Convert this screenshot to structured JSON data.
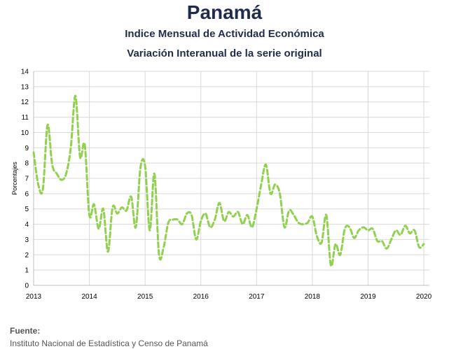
{
  "header": {
    "title": "Panamá",
    "subtitle1": "Indice Mensual de  Actividad Económica",
    "subtitle2": "Variación Interanual de la serie original"
  },
  "source": {
    "label": "Fuente:",
    "text": "Instituto Nacional de Estadística y Censo de Panamá"
  },
  "chart_data": {
    "type": "line",
    "ylabel": "Porcentajes",
    "xlabel": "",
    "ylim": [
      0,
      14
    ],
    "yticks": [
      0,
      1,
      2,
      3,
      4,
      5,
      6,
      7,
      8,
      9,
      10,
      11,
      12,
      13,
      14
    ],
    "xlim": [
      2013,
      2020.1
    ],
    "xticks": [
      "2013",
      "2014",
      "2015",
      "2016",
      "2017",
      "2018",
      "2019",
      "2020"
    ],
    "grid": true,
    "legend": "none",
    "series_color": "#92d050",
    "line_style": "dashed",
    "x": [
      "2013-01",
      "2013-02",
      "2013-03",
      "2013-04",
      "2013-05",
      "2013-06",
      "2013-07",
      "2013-08",
      "2013-09",
      "2013-10",
      "2013-11",
      "2013-12",
      "2014-01",
      "2014-02",
      "2014-03",
      "2014-04",
      "2014-05",
      "2014-06",
      "2014-07",
      "2014-08",
      "2014-09",
      "2014-10",
      "2014-11",
      "2014-12",
      "2015-01",
      "2015-02",
      "2015-03",
      "2015-04",
      "2015-05",
      "2015-06",
      "2015-07",
      "2015-08",
      "2015-09",
      "2015-10",
      "2015-11",
      "2015-12",
      "2016-01",
      "2016-02",
      "2016-03",
      "2016-04",
      "2016-05",
      "2016-06",
      "2016-07",
      "2016-08",
      "2016-09",
      "2016-10",
      "2016-11",
      "2016-12",
      "2017-01",
      "2017-02",
      "2017-03",
      "2017-04",
      "2017-05",
      "2017-06",
      "2017-07",
      "2017-08",
      "2017-09",
      "2017-10",
      "2017-11",
      "2017-12",
      "2018-01",
      "2018-02",
      "2018-03",
      "2018-04",
      "2018-05",
      "2018-06",
      "2018-07",
      "2018-08",
      "2018-09",
      "2018-10",
      "2018-11",
      "2018-12",
      "2019-01",
      "2019-02",
      "2019-03",
      "2019-04",
      "2019-05",
      "2019-06",
      "2019-07",
      "2019-08",
      "2019-09",
      "2019-10",
      "2019-11",
      "2019-12",
      "2020-01"
    ],
    "values": [
      8.7,
      6.6,
      6.3,
      10.5,
      7.9,
      7.3,
      6.9,
      7.3,
      9.0,
      12.4,
      8.4,
      9.2,
      4.6,
      5.3,
      3.7,
      5.0,
      2.2,
      5.1,
      4.7,
      5.1,
      4.9,
      5.8,
      3.8,
      7.7,
      7.8,
      3.6,
      7.3,
      2.0,
      2.5,
      4.1,
      4.3,
      4.3,
      4.0,
      4.7,
      4.6,
      3.0,
      4.2,
      4.7,
      3.8,
      4.3,
      5.4,
      4.2,
      4.8,
      4.5,
      4.8,
      4.0,
      4.6,
      3.8,
      5.0,
      6.6,
      7.9,
      6.0,
      6.6,
      6.0,
      3.8,
      4.9,
      4.6,
      4.1,
      4.0,
      4.1,
      4.5,
      3.2,
      2.8,
      4.6,
      1.3,
      2.7,
      2.0,
      3.7,
      3.8,
      3.1,
      3.6,
      3.8,
      3.6,
      3.7,
      2.9,
      2.9,
      2.4,
      3.0,
      3.6,
      3.3,
      3.9,
      3.4,
      3.6,
      2.5,
      2.7
    ]
  }
}
